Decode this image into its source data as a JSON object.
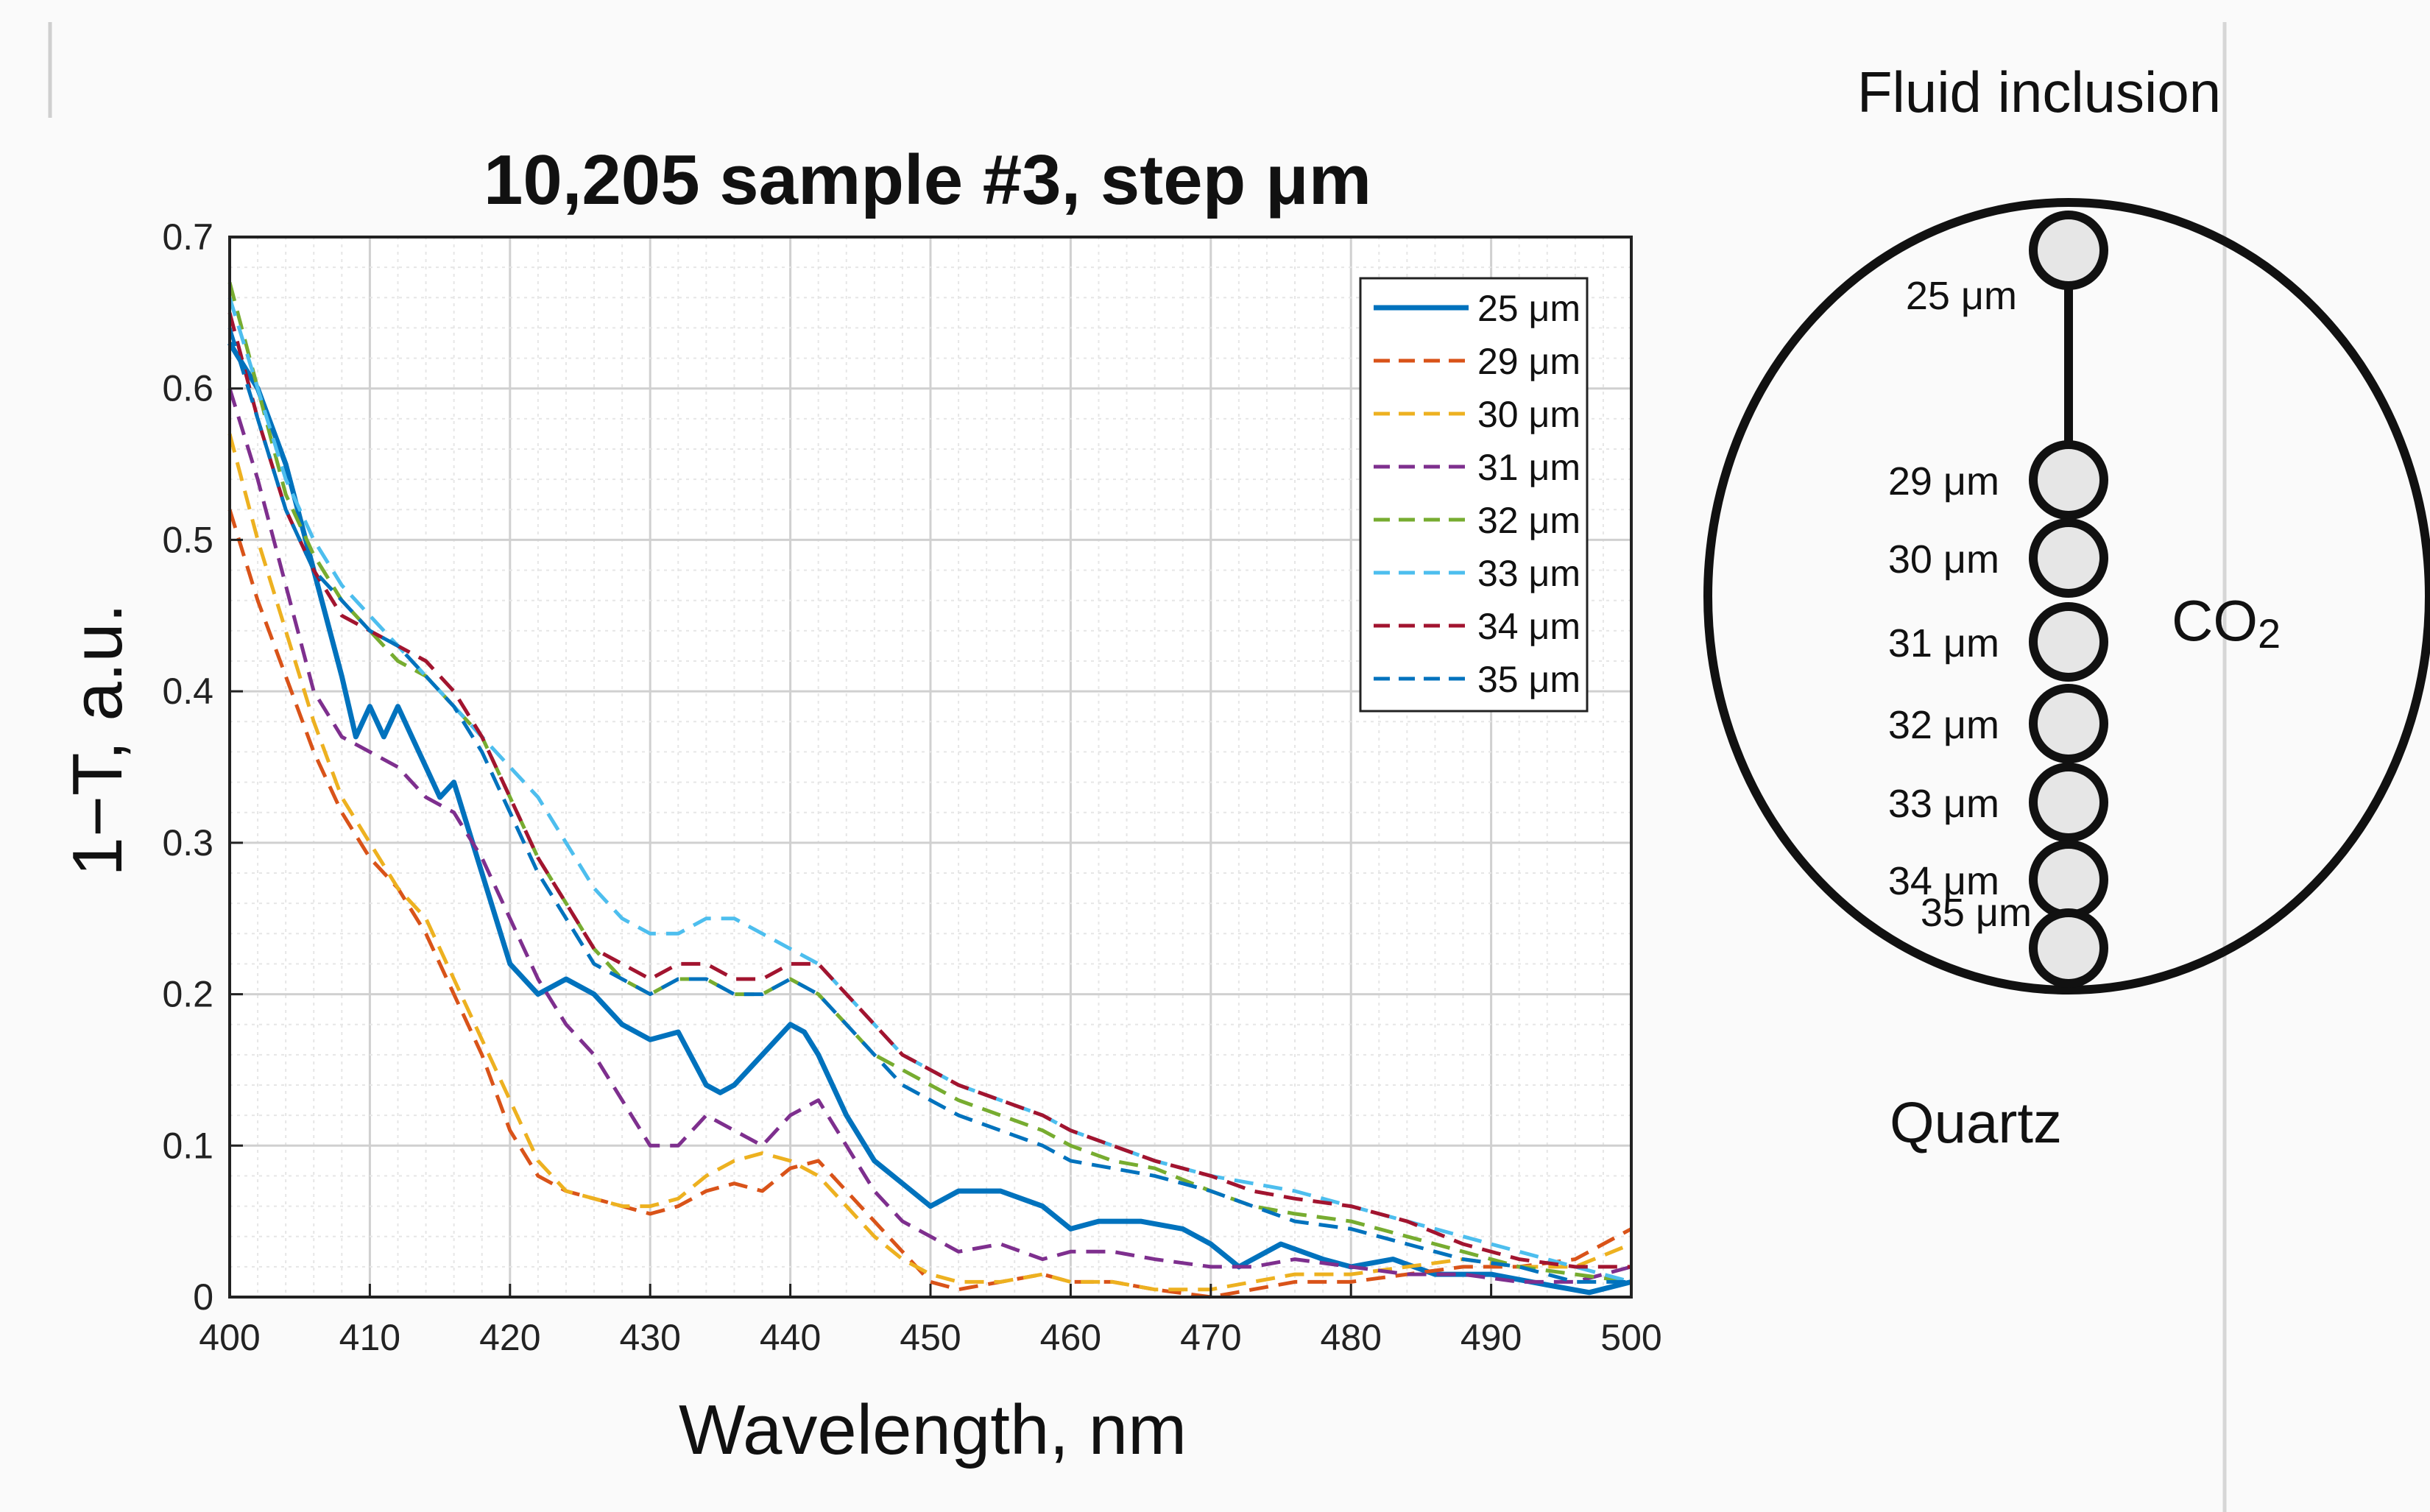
{
  "chart_data": {
    "type": "line",
    "title": "10,205 sample #3, step  μm",
    "xlabel": "Wavelength, nm",
    "ylabel": "1−T, a.u.",
    "xlim": [
      400,
      500
    ],
    "ylim": [
      0,
      0.7
    ],
    "xticks": [
      "400",
      "410",
      "420",
      "430",
      "440",
      "450",
      "460",
      "470",
      "480",
      "490",
      "500"
    ],
    "yticks": [
      "0",
      "0.1",
      "0.2",
      "0.3",
      "0.4",
      "0.5",
      "0.6",
      "0.7"
    ],
    "grid": true,
    "legend_position": "top-right",
    "series": [
      {
        "name": "25 μm",
        "color": "#0072BD",
        "style": "solid",
        "x": [
          400,
          402,
          404,
          406,
          408,
          409,
          410,
          411,
          412,
          413,
          414,
          415,
          416,
          418,
          420,
          422,
          424,
          426,
          428,
          430,
          432,
          434,
          435,
          436,
          438,
          440,
          441,
          442,
          444,
          446,
          448,
          450,
          452,
          455,
          458,
          460,
          462,
          465,
          468,
          470,
          472,
          475,
          478,
          480,
          483,
          486,
          490,
          494,
          497,
          500
        ],
        "y": [
          0.63,
          0.6,
          0.55,
          0.48,
          0.41,
          0.37,
          0.39,
          0.37,
          0.39,
          0.37,
          0.35,
          0.33,
          0.34,
          0.28,
          0.22,
          0.2,
          0.21,
          0.2,
          0.18,
          0.17,
          0.175,
          0.14,
          0.135,
          0.14,
          0.16,
          0.18,
          0.175,
          0.16,
          0.12,
          0.09,
          0.075,
          0.06,
          0.07,
          0.07,
          0.06,
          0.045,
          0.05,
          0.05,
          0.045,
          0.035,
          0.02,
          0.035,
          0.025,
          0.02,
          0.025,
          0.015,
          0.015,
          0.008,
          0.003,
          0.01
        ]
      },
      {
        "name": "29 μm",
        "color": "#D95319",
        "style": "dashed",
        "x": [
          400,
          402,
          404,
          406,
          408,
          410,
          412,
          414,
          416,
          418,
          420,
          422,
          424,
          426,
          428,
          430,
          432,
          434,
          436,
          438,
          440,
          442,
          444,
          446,
          448,
          450,
          452,
          455,
          458,
          460,
          463,
          466,
          470,
          473,
          476,
          480,
          484,
          488,
          492,
          496,
          500
        ],
        "y": [
          0.52,
          0.46,
          0.41,
          0.36,
          0.32,
          0.29,
          0.27,
          0.24,
          0.2,
          0.16,
          0.11,
          0.08,
          0.07,
          0.065,
          0.06,
          0.055,
          0.06,
          0.07,
          0.075,
          0.07,
          0.085,
          0.09,
          0.07,
          0.05,
          0.03,
          0.01,
          0.005,
          0.01,
          0.015,
          0.01,
          0.01,
          0.005,
          0.0,
          0.005,
          0.01,
          0.01,
          0.015,
          0.02,
          0.02,
          0.025,
          0.045
        ]
      },
      {
        "name": "30 μm",
        "color": "#EDB120",
        "style": "dashed",
        "x": [
          400,
          402,
          404,
          406,
          408,
          410,
          412,
          414,
          416,
          418,
          420,
          422,
          424,
          426,
          428,
          430,
          432,
          434,
          436,
          438,
          440,
          442,
          444,
          446,
          448,
          450,
          452,
          455,
          458,
          460,
          463,
          466,
          470,
          473,
          476,
          480,
          484,
          488,
          492,
          496,
          500
        ],
        "y": [
          0.57,
          0.5,
          0.44,
          0.38,
          0.33,
          0.3,
          0.27,
          0.25,
          0.21,
          0.17,
          0.13,
          0.09,
          0.07,
          0.065,
          0.06,
          0.06,
          0.065,
          0.08,
          0.09,
          0.095,
          0.09,
          0.08,
          0.06,
          0.04,
          0.025,
          0.015,
          0.01,
          0.01,
          0.015,
          0.01,
          0.01,
          0.005,
          0.005,
          0.01,
          0.015,
          0.015,
          0.02,
          0.025,
          0.02,
          0.02,
          0.035
        ]
      },
      {
        "name": "31 μm",
        "color": "#7E2F8E",
        "style": "dashed",
        "x": [
          400,
          402,
          404,
          406,
          408,
          410,
          412,
          414,
          416,
          418,
          420,
          422,
          424,
          426,
          428,
          430,
          432,
          434,
          436,
          438,
          440,
          442,
          444,
          446,
          448,
          450,
          452,
          455,
          458,
          460,
          463,
          466,
          470,
          473,
          476,
          480,
          484,
          488,
          492,
          496,
          500
        ],
        "y": [
          0.6,
          0.54,
          0.47,
          0.4,
          0.37,
          0.36,
          0.35,
          0.33,
          0.32,
          0.29,
          0.25,
          0.21,
          0.18,
          0.16,
          0.13,
          0.1,
          0.1,
          0.12,
          0.11,
          0.1,
          0.12,
          0.13,
          0.1,
          0.07,
          0.05,
          0.04,
          0.03,
          0.035,
          0.025,
          0.03,
          0.03,
          0.025,
          0.02,
          0.02,
          0.025,
          0.02,
          0.015,
          0.015,
          0.01,
          0.01,
          0.02
        ]
      },
      {
        "name": "32 μm",
        "color": "#77AC30",
        "style": "dashed",
        "x": [
          400,
          402,
          404,
          406,
          408,
          410,
          412,
          414,
          416,
          418,
          420,
          422,
          424,
          426,
          428,
          430,
          432,
          434,
          436,
          438,
          440,
          442,
          444,
          446,
          448,
          450,
          452,
          455,
          458,
          460,
          463,
          466,
          470,
          473,
          476,
          480,
          484,
          488,
          492,
          496,
          500
        ],
        "y": [
          0.67,
          0.6,
          0.53,
          0.49,
          0.46,
          0.44,
          0.42,
          0.41,
          0.39,
          0.37,
          0.33,
          0.29,
          0.26,
          0.23,
          0.21,
          0.2,
          0.21,
          0.21,
          0.2,
          0.2,
          0.21,
          0.2,
          0.18,
          0.16,
          0.15,
          0.14,
          0.13,
          0.12,
          0.11,
          0.1,
          0.09,
          0.085,
          0.07,
          0.06,
          0.055,
          0.05,
          0.04,
          0.03,
          0.02,
          0.015,
          0.01
        ]
      },
      {
        "name": "33 μm",
        "color": "#4DBEEE",
        "style": "dashed",
        "x": [
          400,
          402,
          404,
          406,
          408,
          410,
          412,
          414,
          416,
          418,
          420,
          422,
          424,
          426,
          428,
          430,
          432,
          434,
          436,
          438,
          440,
          442,
          444,
          446,
          448,
          450,
          452,
          455,
          458,
          460,
          463,
          466,
          470,
          473,
          476,
          480,
          484,
          488,
          492,
          496,
          500
        ],
        "y": [
          0.66,
          0.6,
          0.54,
          0.5,
          0.47,
          0.45,
          0.43,
          0.41,
          0.39,
          0.37,
          0.35,
          0.33,
          0.3,
          0.27,
          0.25,
          0.24,
          0.24,
          0.25,
          0.25,
          0.24,
          0.23,
          0.22,
          0.2,
          0.18,
          0.16,
          0.15,
          0.14,
          0.13,
          0.12,
          0.11,
          0.1,
          0.09,
          0.08,
          0.075,
          0.07,
          0.06,
          0.05,
          0.04,
          0.03,
          0.02,
          0.01
        ]
      },
      {
        "name": "34 μm",
        "color": "#A2142F",
        "style": "dashed",
        "x": [
          400,
          402,
          404,
          406,
          408,
          410,
          412,
          414,
          416,
          418,
          420,
          422,
          424,
          426,
          428,
          430,
          432,
          434,
          436,
          438,
          440,
          442,
          444,
          446,
          448,
          450,
          452,
          455,
          458,
          460,
          463,
          466,
          470,
          473,
          476,
          480,
          484,
          488,
          492,
          496,
          500
        ],
        "y": [
          0.65,
          0.58,
          0.52,
          0.48,
          0.45,
          0.44,
          0.43,
          0.42,
          0.4,
          0.37,
          0.33,
          0.29,
          0.26,
          0.23,
          0.22,
          0.21,
          0.22,
          0.22,
          0.21,
          0.21,
          0.22,
          0.22,
          0.2,
          0.18,
          0.16,
          0.15,
          0.14,
          0.13,
          0.12,
          0.11,
          0.1,
          0.09,
          0.08,
          0.07,
          0.065,
          0.06,
          0.05,
          0.035,
          0.025,
          0.02,
          0.02
        ]
      },
      {
        "name": "35 μm",
        "color": "#0072BD",
        "style": "dashed",
        "x": [
          400,
          402,
          404,
          406,
          408,
          410,
          412,
          414,
          416,
          418,
          420,
          422,
          424,
          426,
          428,
          430,
          432,
          434,
          436,
          438,
          440,
          442,
          444,
          446,
          448,
          450,
          452,
          455,
          458,
          460,
          463,
          466,
          470,
          473,
          476,
          480,
          484,
          488,
          492,
          496,
          500
        ],
        "y": [
          0.64,
          0.58,
          0.52,
          0.48,
          0.46,
          0.44,
          0.43,
          0.41,
          0.39,
          0.36,
          0.32,
          0.28,
          0.25,
          0.22,
          0.21,
          0.2,
          0.21,
          0.21,
          0.2,
          0.2,
          0.21,
          0.2,
          0.18,
          0.16,
          0.14,
          0.13,
          0.12,
          0.11,
          0.1,
          0.09,
          0.085,
          0.08,
          0.07,
          0.06,
          0.05,
          0.045,
          0.035,
          0.025,
          0.02,
          0.01,
          0.01
        ]
      }
    ]
  },
  "diagram": {
    "title": "Fluid inclusion",
    "gas_label": "CO",
    "gas_subscript": "2",
    "host_label": "Quartz",
    "points": [
      "25 μm",
      "29 μm",
      "30 μm",
      "31 μm",
      "32 μm",
      "33 μm",
      "34 μm",
      "35 μm"
    ],
    "colors": {
      "circle_fill": "#e6e6e6",
      "stroke": "#111111"
    }
  }
}
